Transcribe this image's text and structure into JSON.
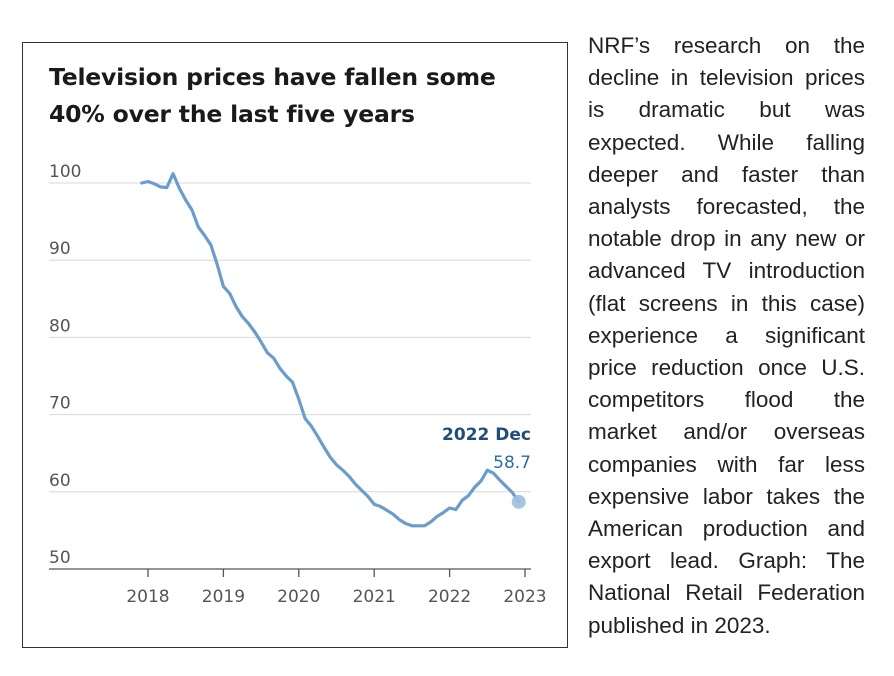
{
  "chart_data": {
    "type": "line",
    "title": "Television prices have fallen some 40% over the last five years",
    "xlabel": "",
    "ylabel": "",
    "x_ticks": [
      "2018",
      "2019",
      "2020",
      "2021",
      "2022",
      "2023"
    ],
    "y_ticks": [
      "100",
      "90",
      "80",
      "70",
      "60",
      "50"
    ],
    "xlim": [
      2018,
      2023
    ],
    "ylim": [
      50,
      100
    ],
    "grid": "horizontal",
    "legend": "none",
    "colors": {
      "line": "#6a9ccc",
      "marker": "#9dbfe0",
      "gridline": "#d9d9d9",
      "annotation_label": "#1f4e79",
      "annotation_value": "#2d6da3"
    },
    "series": [
      {
        "x": [
          "2017-12",
          "2018-01",
          "2018-02",
          "2018-03",
          "2018-04",
          "2018-05",
          "2018-06",
          "2018-07",
          "2018-08",
          "2018-09",
          "2018-10",
          "2018-11",
          "2018-12",
          "2019-01",
          "2019-02",
          "2019-03",
          "2019-04",
          "2019-05",
          "2019-06",
          "2019-07",
          "2019-08",
          "2019-09",
          "2019-10",
          "2019-11",
          "2019-12",
          "2020-01",
          "2020-02",
          "2020-03",
          "2020-04",
          "2020-05",
          "2020-06",
          "2020-07",
          "2020-08",
          "2020-09",
          "2020-10",
          "2020-11",
          "2020-12",
          "2021-01",
          "2021-02",
          "2021-03",
          "2021-04",
          "2021-05",
          "2021-06",
          "2021-07",
          "2021-08",
          "2021-09",
          "2021-10",
          "2021-11",
          "2021-12",
          "2022-01",
          "2022-02",
          "2022-03",
          "2022-04",
          "2022-05",
          "2022-06",
          "2022-07",
          "2022-08",
          "2022-09",
          "2022-10",
          "2022-11",
          "2022-12"
        ],
        "values": [
          100.0,
          100.2,
          99.9,
          99.5,
          99.4,
          101.2,
          99.3,
          97.8,
          96.5,
          94.3,
          93.2,
          92.0,
          89.5,
          86.6,
          85.7,
          84.0,
          82.7,
          81.8,
          80.7,
          79.4,
          78.0,
          77.3,
          76.0,
          75.0,
          74.2,
          72.0,
          69.5,
          68.5,
          67.2,
          65.8,
          64.5,
          63.5,
          62.8,
          62.0,
          61.0,
          60.2,
          59.4,
          58.4,
          58.1,
          57.6,
          57.1,
          56.4,
          55.9,
          55.6,
          55.6,
          55.6,
          56.1,
          56.8,
          57.3,
          57.9,
          57.7,
          58.9,
          59.5,
          60.6,
          61.4,
          62.8,
          62.4,
          61.5,
          60.7,
          59.9,
          58.7
        ]
      }
    ],
    "annotations": [
      {
        "x": "2022-12",
        "label": "2022 Dec",
        "value": "58.7"
      }
    ]
  },
  "caption": "NRF’s research on the decline in television prices is dramatic but was expected. While falling deeper and faster than analysts forecasted, the notable drop in any new or advanced TV introduction (flat screens in this case) experience a significant price reduction once U.S. competitors flood the market and/or overseas companies with far less expensive labor takes the American production and export lead. Graph: The National Retail Federation published in 2023."
}
